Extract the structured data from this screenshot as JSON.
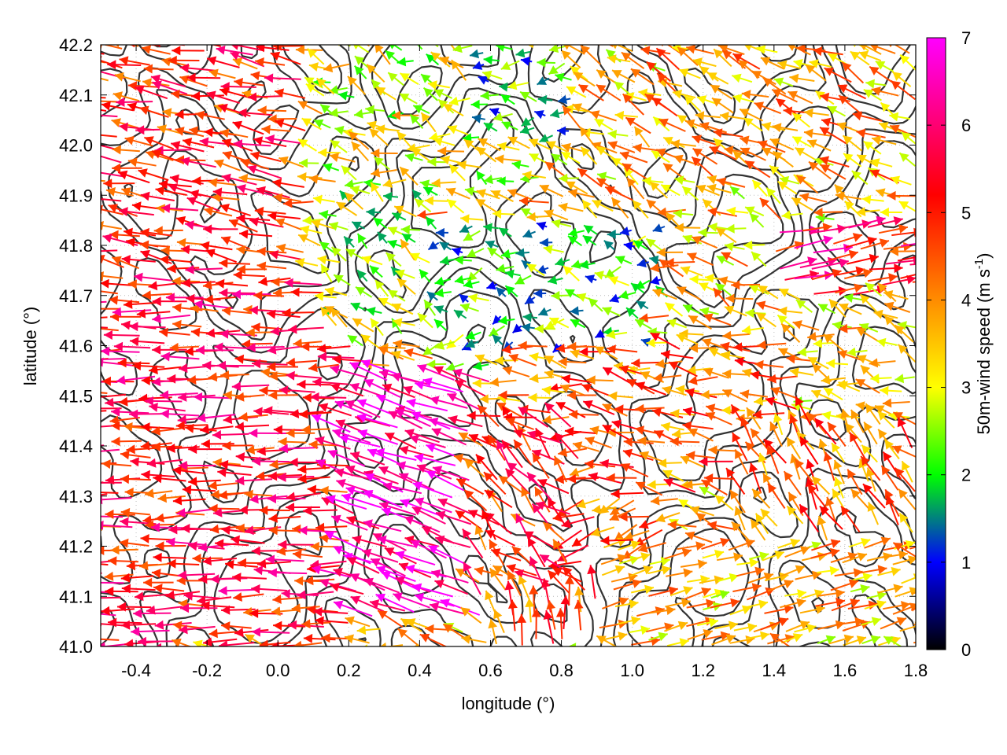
{
  "chart_data": {
    "type": "vector-field",
    "xlabel": "longitude (°)",
    "ylabel": "latitude (°)",
    "colorbar_label_main": "50m-wind speed (m s",
    "colorbar_label_sup": "-1",
    "colorbar_label_close": ")",
    "xlim": [
      -0.5,
      1.8
    ],
    "ylim": [
      41.0,
      42.2
    ],
    "x_ticks": [
      -0.4,
      -0.2,
      0.0,
      0.2,
      0.4,
      0.6,
      0.8,
      1.0,
      1.2,
      1.4,
      1.6,
      1.8
    ],
    "x_tick_labels": [
      "-0.4",
      "-0.2",
      "0.0",
      "0.2",
      "0.4",
      "0.6",
      "0.8",
      "1.0",
      "1.2",
      "1.4",
      "1.6",
      "1.8"
    ],
    "y_ticks": [
      41.0,
      41.1,
      41.2,
      41.3,
      41.4,
      41.5,
      41.6,
      41.7,
      41.8,
      41.9,
      42.0,
      42.1,
      42.2
    ],
    "y_tick_labels": [
      "41.0",
      "41.1",
      "41.2",
      "41.3",
      "41.4",
      "41.5",
      "41.6",
      "41.7",
      "41.8",
      "41.9",
      "42.0",
      "42.1",
      "42.2"
    ],
    "grid": "dotted",
    "colorbar": {
      "min": 0,
      "max": 7,
      "ticks": [
        0,
        1,
        2,
        3,
        4,
        5,
        6,
        7
      ],
      "tick_labels": [
        "0",
        "1",
        "2",
        "3",
        "4",
        "5",
        "6",
        "7"
      ],
      "colors": [
        "#000000",
        "#0000ff",
        "#00ff00",
        "#ffff00",
        "#ff8c00",
        "#ff0000",
        "#ff00ff"
      ],
      "stops": [
        0,
        1,
        2,
        3,
        4,
        5.2,
        7
      ]
    },
    "contour_color": "#333333",
    "regions": [
      {
        "x": [
          -0.5,
          0.1
        ],
        "y": [
          41.75,
          42.2
        ],
        "speed": 5.0,
        "dir_deg": 170,
        "spread": 25
      },
      {
        "x": [
          -0.5,
          0.25
        ],
        "y": [
          41.0,
          41.75
        ],
        "speed": 5.3,
        "dir_deg": 180,
        "spread": 15
      },
      {
        "x": [
          0.2,
          0.6
        ],
        "y": [
          41.05,
          41.55
        ],
        "speed": 6.6,
        "dir_deg": 160,
        "spread": 15
      },
      {
        "x": [
          0.55,
          0.9
        ],
        "y": [
          41.1,
          41.45
        ],
        "speed": 5.0,
        "dir_deg": 140,
        "spread": 60
      },
      {
        "x": [
          0.85,
          1.15
        ],
        "y": [
          41.15,
          41.45
        ],
        "speed": 4.6,
        "dir_deg": 200,
        "spread": 40
      },
      {
        "x": [
          0.45,
          1.1
        ],
        "y": [
          41.55,
          41.85
        ],
        "speed": 2.0,
        "dir_deg": 180,
        "spread": 90
      },
      {
        "x": [
          0.15,
          0.45
        ],
        "y": [
          41.6,
          41.95
        ],
        "speed": 2.7,
        "dir_deg": 150,
        "spread": 60
      },
      {
        "x": [
          0.1,
          0.8
        ],
        "y": [
          41.9,
          42.2
        ],
        "speed": 3.0,
        "dir_deg": 160,
        "spread": 70
      },
      {
        "x": [
          0.55,
          0.95
        ],
        "y": [
          42.0,
          42.2
        ],
        "speed": 1.9,
        "dir_deg": 180,
        "spread": 70
      },
      {
        "x": [
          0.85,
          1.3
        ],
        "y": [
          41.85,
          42.2
        ],
        "speed": 3.6,
        "dir_deg": 150,
        "spread": 50
      },
      {
        "x": [
          1.1,
          1.8
        ],
        "y": [
          41.9,
          42.2
        ],
        "speed": 3.8,
        "dir_deg": 155,
        "spread": 40
      },
      {
        "x": [
          1.1,
          1.8
        ],
        "y": [
          41.45,
          41.9
        ],
        "speed": 3.5,
        "dir_deg": 160,
        "spread": 60
      },
      {
        "x": [
          1.4,
          1.8
        ],
        "y": [
          41.7,
          41.85
        ],
        "speed": 5.5,
        "dir_deg": 10,
        "spread": 15
      },
      {
        "x": [
          0.9,
          1.5
        ],
        "y": [
          41.3,
          41.6
        ],
        "speed": 4.4,
        "dir_deg": 170,
        "spread": 40
      },
      {
        "x": [
          1.3,
          1.8
        ],
        "y": [
          41.2,
          41.45
        ],
        "speed": 4.3,
        "dir_deg": 120,
        "spread": 30
      },
      {
        "x": [
          0.9,
          1.8
        ],
        "y": [
          41.0,
          41.2
        ],
        "speed": 3.6,
        "dir_deg": 15,
        "spread": 15
      },
      {
        "x": [
          0.6,
          0.9
        ],
        "y": [
          41.0,
          41.1
        ],
        "speed": 4.5,
        "dir_deg": 100,
        "spread": 30
      },
      {
        "x": [
          0.6,
          0.95
        ],
        "y": [
          41.45,
          41.6
        ],
        "speed": 4.3,
        "dir_deg": 170,
        "spread": 40
      }
    ]
  }
}
